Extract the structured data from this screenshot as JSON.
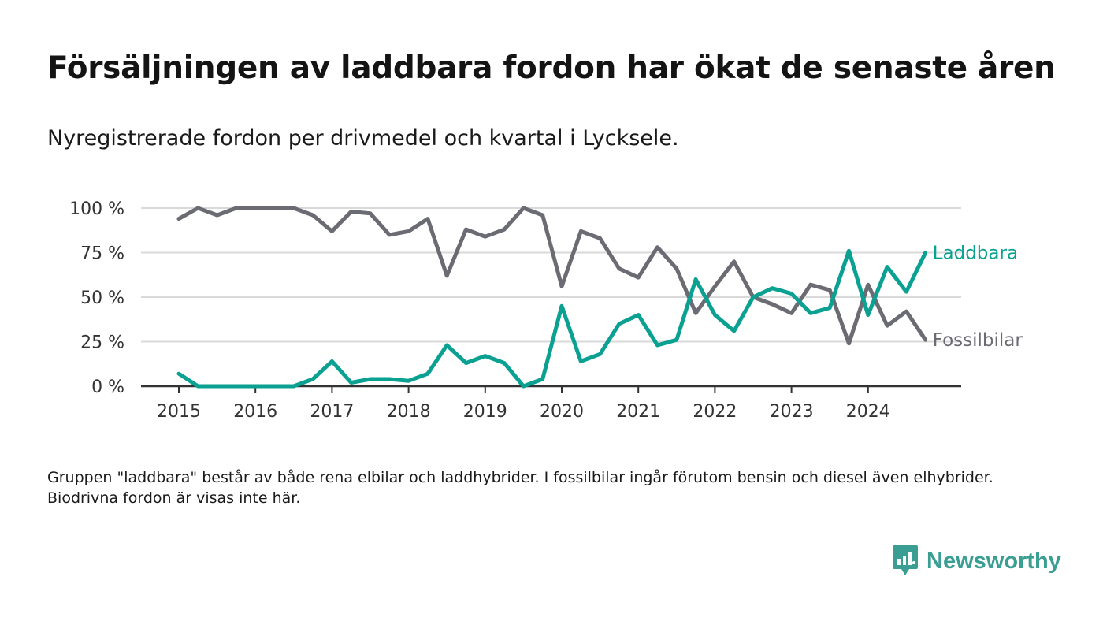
{
  "title": "Försäljningen av laddbara fordon har ökat de senaste åren",
  "subtitle": "Nyregistrerade fordon per drivmedel och kvartal i Lycksele.",
  "footnote": "Gruppen \"laddbara\" består av både rena elbilar och laddhybrider. I fossilbilar ingår förutom bensin och diesel även elhybrider. Biodrivna fordon är visas inte här.",
  "brand": {
    "name": "Newsworthy",
    "icon": "newsworthy-logo-icon",
    "color": "#3a9e92"
  },
  "chart_data": {
    "type": "line",
    "y_tick_labels": [
      "0 %",
      "25 %",
      "50 %",
      "75 %",
      "100 %"
    ],
    "y_ticks": [
      0,
      25,
      50,
      75,
      100
    ],
    "ylim": [
      0,
      100
    ],
    "x_tick_labels": [
      "2015",
      "2016",
      "2017",
      "2018",
      "2019",
      "2020",
      "2021",
      "2022",
      "2023",
      "2024"
    ],
    "grid": true,
    "legend": "inline labels at line ends (right)",
    "x": [
      "2015 Q1",
      "2015 Q2",
      "2015 Q3",
      "2015 Q4",
      "2016 Q1",
      "2016 Q2",
      "2016 Q3",
      "2016 Q4",
      "2017 Q1",
      "2017 Q2",
      "2017 Q3",
      "2017 Q4",
      "2018 Q1",
      "2018 Q2",
      "2018 Q3",
      "2018 Q4",
      "2019 Q1",
      "2019 Q2",
      "2019 Q3",
      "2019 Q4",
      "2020 Q1",
      "2020 Q2",
      "2020 Q3",
      "2020 Q4",
      "2021 Q1",
      "2021 Q2",
      "2021 Q3",
      "2021 Q4",
      "2022 Q1",
      "2022 Q2",
      "2022 Q3",
      "2022 Q4",
      "2023 Q1",
      "2023 Q2",
      "2023 Q3",
      "2023 Q4",
      "2024 Q1",
      "2024 Q2",
      "2024 Q3",
      "2024 Q4"
    ],
    "series": [
      {
        "name": "Fossilbilar",
        "color": "#6b6b73",
        "values": [
          94,
          100,
          96,
          100,
          100,
          100,
          100,
          96,
          87,
          98,
          97,
          85,
          87,
          94,
          62,
          88,
          84,
          88,
          100,
          96,
          56,
          87,
          83,
          66,
          61,
          78,
          66,
          41,
          56,
          70,
          50,
          46,
          41,
          57,
          54,
          24,
          57,
          34,
          42,
          26
        ]
      },
      {
        "name": "Laddbara",
        "color": "#0aa192",
        "values": [
          7,
          0,
          0,
          0,
          0,
          0,
          0,
          4,
          14,
          2,
          4,
          4,
          3,
          7,
          23,
          13,
          17,
          13,
          0,
          4,
          45,
          14,
          18,
          35,
          40,
          23,
          26,
          60,
          40,
          31,
          50,
          55,
          52,
          41,
          44,
          76,
          40,
          67,
          53,
          75
        ]
      }
    ]
  }
}
